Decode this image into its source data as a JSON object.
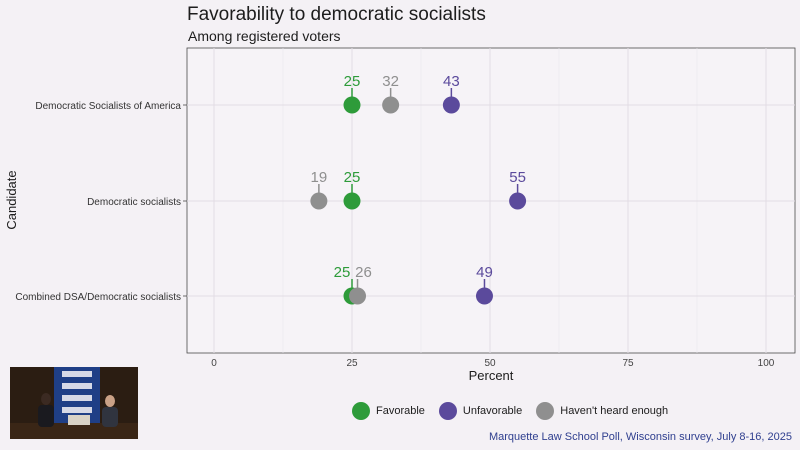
{
  "chart_data": {
    "type": "scatter",
    "title": "Favorability to democratic socialists",
    "subtitle": "Among registered voters",
    "xlabel": "Percent",
    "ylabel": "Candidate",
    "xlim": [
      0,
      100
    ],
    "x_ticks": [
      "0",
      "25",
      "50",
      "75",
      "100"
    ],
    "categories": [
      "Democratic Socialists of America",
      "Democratic socialists",
      "Combined DSA/Democratic socialists"
    ],
    "series": [
      {
        "name": "Favorable",
        "color": "#2e9b3a",
        "values": [
          25,
          25,
          25
        ]
      },
      {
        "name": "Unfavorable",
        "color": "#5b4a9c",
        "values": [
          43,
          55,
          49
        ]
      },
      {
        "name": "Haven't heard enough",
        "color": "#8f8f8f",
        "values": [
          32,
          19,
          26
        ]
      }
    ],
    "grid": true,
    "legend": "bottom"
  },
  "caption": "Marquette Law School Poll, Wisconsin survey, July 8-16, 2025"
}
